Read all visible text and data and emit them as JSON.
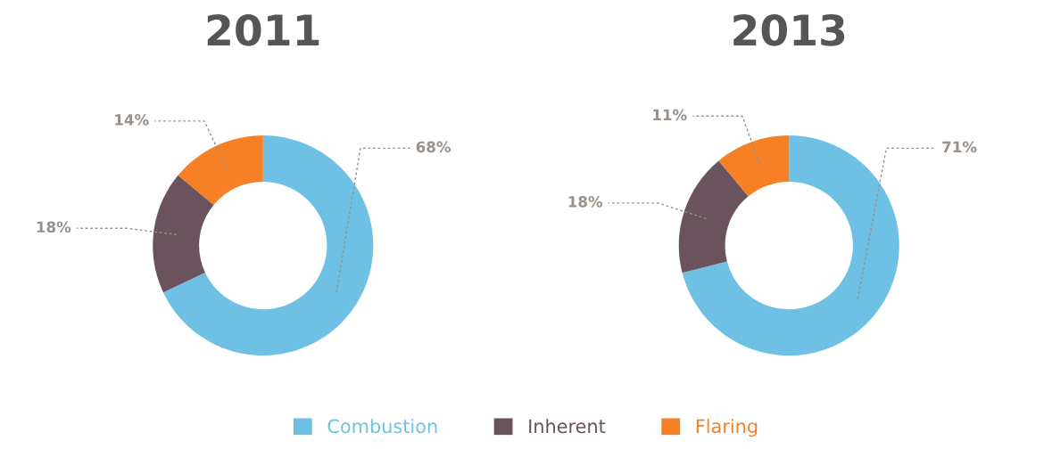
{
  "chart_data": [
    {
      "type": "donut",
      "title": "2011",
      "categories": [
        "Combustion",
        "Inherent",
        "Flaring"
      ],
      "values": [
        68,
        18,
        14
      ],
      "colors": [
        "#6ec1e4",
        "#6b535e",
        "#f58025"
      ],
      "value_labels": [
        "68%",
        "18%",
        "14%"
      ],
      "legend": "bottom"
    },
    {
      "type": "donut",
      "title": "2013",
      "categories": [
        null,
        null,
        null
      ],
      "values": [
        71,
        18,
        11
      ],
      "colors": [
        "#6ec1e4",
        "#6b535e",
        "#f58025"
      ],
      "value_labels": [
        "71%",
        "18%",
        "11%"
      ]
    }
  ]
}
